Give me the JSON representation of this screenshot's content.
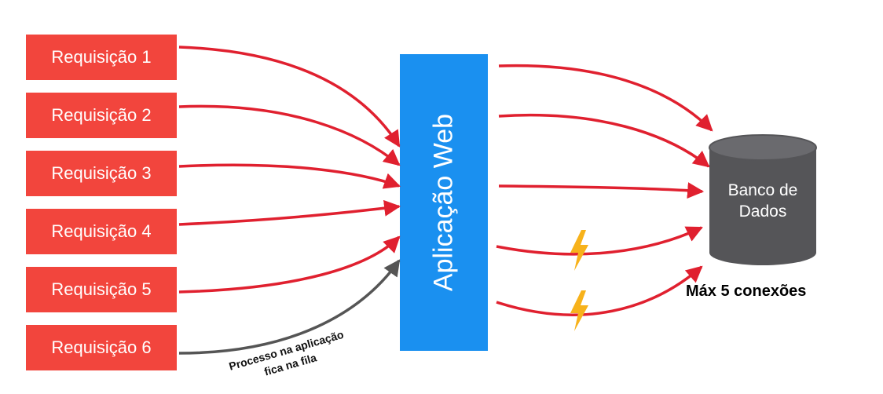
{
  "requests": [
    {
      "label": "Requisição 1"
    },
    {
      "label": "Requisição 2"
    },
    {
      "label": "Requisição 3"
    },
    {
      "label": "Requisição 4"
    },
    {
      "label": "Requisição 5"
    },
    {
      "label": "Requisição 6"
    }
  ],
  "app": {
    "label": "Aplicação Web"
  },
  "database": {
    "line1": "Banco de",
    "line2": "Dados",
    "limit_label": "Máx 5 conexões"
  },
  "queue_note": {
    "line1": "Processo na aplicação",
    "line2": "fica na fila"
  },
  "colors": {
    "request_box": "#f2453d",
    "app_box": "#1a90f0",
    "arrow_active": "#e0202f",
    "arrow_queued": "#555555",
    "database": "#555558",
    "bolt": "#f7b21b"
  },
  "icons": {
    "lightning": "lightning-bolt-icon",
    "database": "database-cylinder-icon"
  }
}
